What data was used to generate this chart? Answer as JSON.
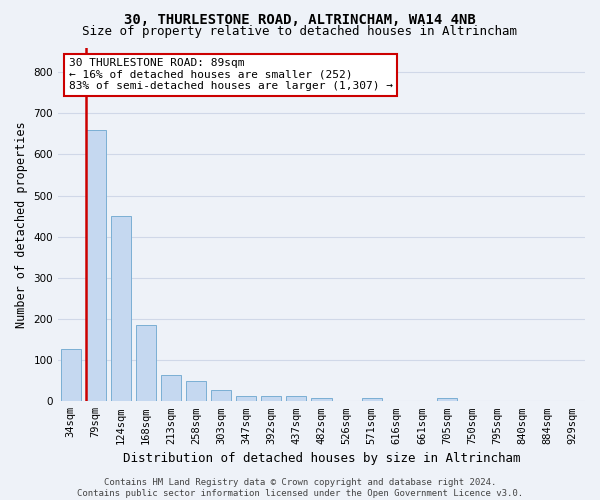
{
  "title": "30, THURLESTONE ROAD, ALTRINCHAM, WA14 4NB",
  "subtitle": "Size of property relative to detached houses in Altrincham",
  "xlabel": "Distribution of detached houses by size in Altrincham",
  "ylabel": "Number of detached properties",
  "categories": [
    "34sqm",
    "79sqm",
    "124sqm",
    "168sqm",
    "213sqm",
    "258sqm",
    "303sqm",
    "347sqm",
    "392sqm",
    "437sqm",
    "482sqm",
    "526sqm",
    "571sqm",
    "616sqm",
    "661sqm",
    "705sqm",
    "750sqm",
    "795sqm",
    "840sqm",
    "884sqm",
    "929sqm"
  ],
  "values": [
    128,
    660,
    450,
    185,
    63,
    50,
    28,
    12,
    14,
    14,
    8,
    0,
    8,
    0,
    0,
    8,
    0,
    0,
    0,
    0,
    0
  ],
  "bar_color": "#c5d8f0",
  "bar_edge_color": "#7bafd4",
  "red_line_index": 1,
  "red_line_color": "#cc0000",
  "annotation_text": "30 THURLESTONE ROAD: 89sqm\n← 16% of detached houses are smaller (252)\n83% of semi-detached houses are larger (1,307) →",
  "annotation_box_facecolor": "#ffffff",
  "annotation_box_edgecolor": "#cc0000",
  "ylim": [
    0,
    860
  ],
  "yticks": [
    0,
    100,
    200,
    300,
    400,
    500,
    600,
    700,
    800
  ],
  "footer_line1": "Contains HM Land Registry data © Crown copyright and database right 2024.",
  "footer_line2": "Contains public sector information licensed under the Open Government Licence v3.0.",
  "bg_color": "#eef2f8",
  "grid_color": "#d0d8e8",
  "title_fontsize": 10,
  "subtitle_fontsize": 9,
  "tick_fontsize": 7.5,
  "ylabel_fontsize": 8.5,
  "xlabel_fontsize": 9,
  "footer_fontsize": 6.5,
  "annot_fontsize": 8
}
